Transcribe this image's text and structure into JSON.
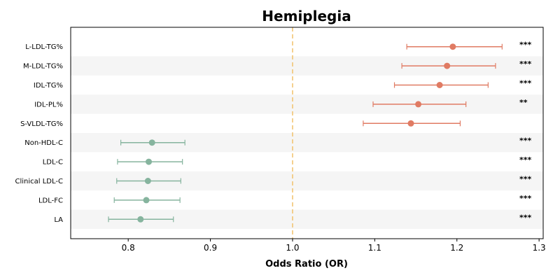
{
  "chart_data": {
    "type": "forest",
    "title": "Hemiplegia",
    "xlabel": "Odds Ratio (OR)",
    "xlim": [
      0.73,
      1.305
    ],
    "xticks": [
      "0.8",
      "0.9",
      "1.0",
      "1.1",
      "1.2",
      "1.3"
    ],
    "reference_line": 1.0,
    "colors": {
      "positive": "#E07B63",
      "negative": "#86B49E",
      "reference": "#F2C26B",
      "band": "#F5F5F5"
    },
    "rows": [
      {
        "label": "L-LDL-TG%",
        "or": 1.195,
        "lo": 1.139,
        "hi": 1.255,
        "sig": "***"
      },
      {
        "label": "M-LDL-TG%",
        "or": 1.188,
        "lo": 1.133,
        "hi": 1.247,
        "sig": "***"
      },
      {
        "label": "IDL-TG%",
        "or": 1.179,
        "lo": 1.124,
        "hi": 1.238,
        "sig": "***"
      },
      {
        "label": "IDL-PL%",
        "or": 1.153,
        "lo": 1.098,
        "hi": 1.211,
        "sig": "**"
      },
      {
        "label": "S-VLDL-TG%",
        "or": 1.144,
        "lo": 1.086,
        "hi": 1.204,
        "sig": ""
      },
      {
        "label": "Non-HDL-C",
        "or": 0.829,
        "lo": 0.791,
        "hi": 0.869,
        "sig": "***"
      },
      {
        "label": "LDL-C",
        "or": 0.825,
        "lo": 0.787,
        "hi": 0.866,
        "sig": "***"
      },
      {
        "label": "Clinical LDL-C",
        "or": 0.824,
        "lo": 0.786,
        "hi": 0.864,
        "sig": "***"
      },
      {
        "label": "LDL-FC",
        "or": 0.822,
        "lo": 0.783,
        "hi": 0.863,
        "sig": "***"
      },
      {
        "label": "LA",
        "or": 0.815,
        "lo": 0.776,
        "hi": 0.855,
        "sig": "***"
      }
    ]
  }
}
